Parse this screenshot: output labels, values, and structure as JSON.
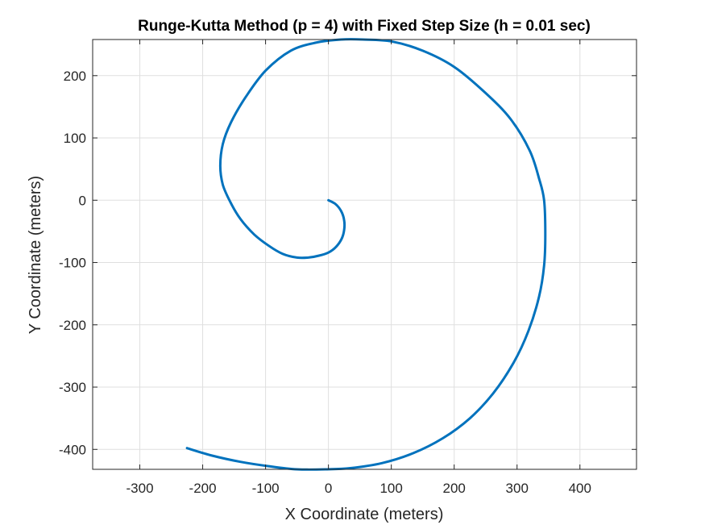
{
  "chart_data": {
    "type": "line",
    "title": "Runge-Kutta Method (p = 4) with Fixed Step Size (h = 0.01 sec)",
    "xlabel": "X Coordinate (meters)",
    "ylabel": "Y Coordinate (meters)",
    "xlim": [
      -375,
      490
    ],
    "ylim": [
      -432,
      258
    ],
    "xticks": [
      -300,
      -200,
      -100,
      0,
      100,
      200,
      300,
      400
    ],
    "yticks": [
      200,
      100,
      0,
      -100,
      -200,
      -300,
      -400
    ],
    "xtick_labels": [
      "-300",
      "-200",
      "-100",
      "0",
      "100",
      "200",
      "300",
      "400"
    ],
    "ytick_labels": [
      "200",
      "100",
      "0",
      "-100",
      "-200",
      "-300",
      "-400"
    ],
    "grid": true,
    "line_color": "#0072bd",
    "series": [
      {
        "x": [
          0,
          11,
          20,
          25,
          25,
          21,
          12,
          0,
          -15,
          -32,
          -50,
          -73,
          -95,
          -118,
          -140,
          -156,
          -168,
          -172,
          -168,
          -155,
          -132,
          -100,
          -60,
          -20,
          20,
          55,
          100,
          150,
          200,
          250,
          290,
          320,
          335,
          343,
          345,
          343,
          335,
          318,
          295,
          262,
          225,
          182,
          135,
          85,
          35,
          -5,
          -50,
          -95,
          -140,
          -185,
          -225
        ],
        "y": [
          0,
          -6,
          -17,
          -32,
          -48,
          -62,
          -75,
          -84,
          -89,
          -92,
          -92,
          -86,
          -73,
          -55,
          -30,
          -3,
          25,
          55,
          90,
          125,
          165,
          208,
          240,
          253,
          258,
          258,
          255,
          240,
          214,
          172,
          130,
          80,
          35,
          0,
          -55,
          -105,
          -155,
          -210,
          -260,
          -310,
          -350,
          -382,
          -406,
          -422,
          -430,
          -432,
          -432,
          -427,
          -420,
          -410,
          -398
        ]
      }
    ]
  }
}
